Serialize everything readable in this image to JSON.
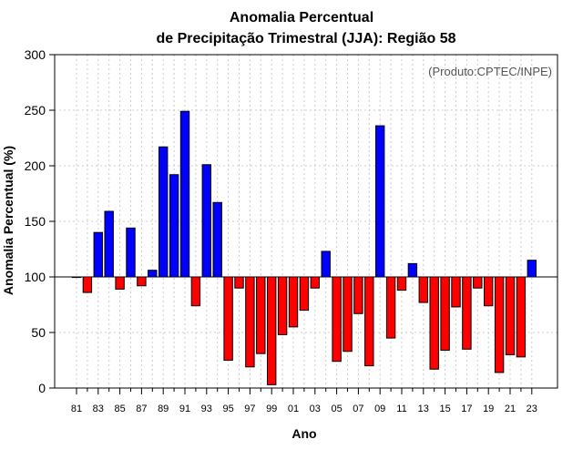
{
  "chart_data": {
    "type": "bar",
    "title_line1": "Anomalia Percentual",
    "title_line2": "de Precipitação Trimestral (JJA): Região 58",
    "credit": "(Produto:CPTEC/INPE)",
    "xlabel": "Ano",
    "ylabel": "Anomalia Percentual (%)",
    "ylim": [
      0,
      300
    ],
    "yticks": [
      0,
      50,
      100,
      150,
      200,
      250,
      300
    ],
    "baseline": 100,
    "grid": true,
    "colors": {
      "above": "#0000ff",
      "below": "#ff0000",
      "edge": "#000000",
      "grid": "#cccccc"
    },
    "categories": [
      "81",
      "82",
      "83",
      "84",
      "85",
      "86",
      "87",
      "88",
      "89",
      "90",
      "91",
      "92",
      "93",
      "94",
      "95",
      "96",
      "97",
      "98",
      "99",
      "00",
      "01",
      "02",
      "03",
      "04",
      "05",
      "06",
      "07",
      "08",
      "09",
      "10",
      "11",
      "12",
      "13",
      "14",
      "15",
      "16",
      "17",
      "18",
      "19",
      "20",
      "21",
      "22",
      "23"
    ],
    "xtick_labels": [
      "81",
      "83",
      "85",
      "87",
      "89",
      "91",
      "93",
      "95",
      "97",
      "99",
      "01",
      "03",
      "05",
      "07",
      "09",
      "11",
      "13",
      "15",
      "17",
      "19",
      "21",
      "23"
    ],
    "values": [
      100,
      86,
      140,
      159,
      89,
      144,
      92,
      106,
      217,
      192,
      249,
      74,
      201,
      167,
      25,
      90,
      19,
      31,
      3,
      48,
      55,
      70,
      90,
      123,
      24,
      33,
      67,
      20,
      236,
      45,
      88,
      112,
      77,
      17,
      34,
      73,
      35,
      90,
      74,
      14,
      30,
      28,
      115
    ]
  }
}
